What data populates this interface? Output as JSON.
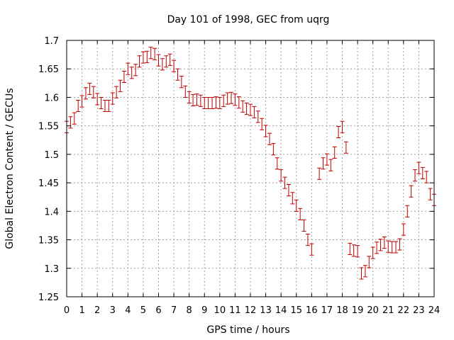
{
  "chart_data": {
    "type": "scatter",
    "title": "Day 101 of 1998, GEC from uqrg",
    "xlabel": "GPS time / hours",
    "ylabel": "Global Electron Content / GECUs",
    "xlim": [
      0,
      24
    ],
    "ylim": [
      1.25,
      1.7
    ],
    "xticks": [
      "0",
      "1",
      "2",
      "3",
      "4",
      "5",
      "6",
      "7",
      "8",
      "9",
      "10",
      "11",
      "12",
      "13",
      "14",
      "15",
      "16",
      "17",
      "18",
      "19",
      "20",
      "21",
      "22",
      "23",
      "24"
    ],
    "yticks": [
      "1.25",
      "1.3",
      "1.35",
      "1.4",
      "1.45",
      "1.5",
      "1.55",
      "1.6",
      "1.65",
      "1.7"
    ],
    "grid": true,
    "series_color": "#c00000",
    "error_halfwidth": 0.01,
    "points": [
      [
        0.0,
        1.548
      ],
      [
        0.25,
        1.556
      ],
      [
        0.5,
        1.563
      ],
      [
        0.75,
        1.585
      ],
      [
        1.0,
        1.593
      ],
      [
        1.25,
        1.607
      ],
      [
        1.5,
        1.615
      ],
      [
        1.75,
        1.609
      ],
      [
        2.0,
        1.597
      ],
      [
        2.25,
        1.59
      ],
      [
        2.5,
        1.585
      ],
      [
        2.75,
        1.585
      ],
      [
        3.0,
        1.598
      ],
      [
        3.25,
        1.609
      ],
      [
        3.5,
        1.62
      ],
      [
        3.75,
        1.636
      ],
      [
        4.0,
        1.65
      ],
      [
        4.25,
        1.643
      ],
      [
        4.5,
        1.648
      ],
      [
        4.75,
        1.663
      ],
      [
        5.0,
        1.67
      ],
      [
        5.25,
        1.671
      ],
      [
        5.5,
        1.678
      ],
      [
        5.75,
        1.676
      ],
      [
        6.0,
        1.665
      ],
      [
        6.25,
        1.658
      ],
      [
        6.5,
        1.663
      ],
      [
        6.75,
        1.666
      ],
      [
        7.0,
        1.655
      ],
      [
        7.25,
        1.64
      ],
      [
        7.5,
        1.627
      ],
      [
        7.75,
        1.61
      ],
      [
        8.0,
        1.6
      ],
      [
        8.25,
        1.595
      ],
      [
        8.5,
        1.596
      ],
      [
        8.75,
        1.594
      ],
      [
        9.0,
        1.59
      ],
      [
        9.25,
        1.59
      ],
      [
        9.5,
        1.59
      ],
      [
        9.75,
        1.591
      ],
      [
        10.0,
        1.59
      ],
      [
        10.25,
        1.594
      ],
      [
        10.5,
        1.598
      ],
      [
        10.75,
        1.599
      ],
      [
        11.0,
        1.596
      ],
      [
        11.25,
        1.591
      ],
      [
        11.5,
        1.584
      ],
      [
        11.75,
        1.58
      ],
      [
        12.0,
        1.578
      ],
      [
        12.25,
        1.574
      ],
      [
        12.5,
        1.566
      ],
      [
        12.75,
        1.553
      ],
      [
        13.0,
        1.541
      ],
      [
        13.25,
        1.527
      ],
      [
        13.5,
        1.509
      ],
      [
        13.75,
        1.484
      ],
      [
        14.0,
        1.463
      ],
      [
        14.25,
        1.45
      ],
      [
        14.5,
        1.437
      ],
      [
        14.75,
        1.423
      ],
      [
        15.0,
        1.41
      ],
      [
        15.25,
        1.395
      ],
      [
        15.5,
        1.375
      ],
      [
        15.75,
        1.35
      ],
      [
        16.0,
        1.333
      ],
      [
        16.5,
        1.466
      ],
      [
        16.75,
        1.484
      ],
      [
        17.0,
        1.491
      ],
      [
        17.25,
        1.481
      ],
      [
        17.5,
        1.503
      ],
      [
        17.75,
        1.539
      ],
      [
        18.0,
        1.548
      ],
      [
        18.25,
        1.512
      ],
      [
        18.5,
        1.334
      ],
      [
        18.75,
        1.331
      ],
      [
        19.0,
        1.33
      ],
      [
        19.25,
        1.291
      ],
      [
        19.5,
        1.295
      ],
      [
        19.75,
        1.311
      ],
      [
        20.0,
        1.327
      ],
      [
        20.25,
        1.336
      ],
      [
        20.5,
        1.341
      ],
      [
        20.75,
        1.345
      ],
      [
        21.0,
        1.338
      ],
      [
        21.25,
        1.337
      ],
      [
        21.5,
        1.337
      ],
      [
        21.75,
        1.342
      ],
      [
        22.0,
        1.368
      ],
      [
        22.25,
        1.4
      ],
      [
        22.5,
        1.435
      ],
      [
        22.75,
        1.463
      ],
      [
        23.0,
        1.476
      ],
      [
        23.25,
        1.467
      ],
      [
        23.5,
        1.46
      ],
      [
        23.75,
        1.43
      ],
      [
        24.0,
        1.42
      ]
    ]
  }
}
